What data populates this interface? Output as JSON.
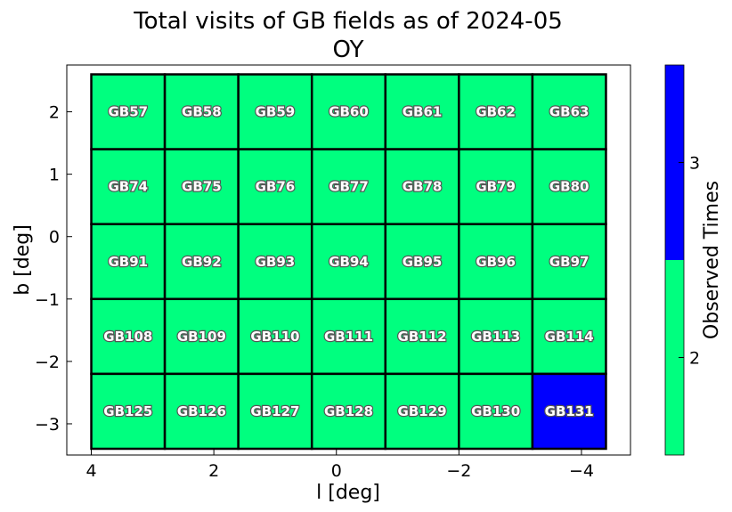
{
  "chart_data": {
    "type": "heatmap",
    "title": "Total visits of GB fields as of 2024-05",
    "subtitle": "OY",
    "xlabel": "l [deg]",
    "ylabel": "b [deg]",
    "xlim": [
      4.4,
      -4.8
    ],
    "ylim": [
      -3.5,
      2.75
    ],
    "x_axis_inverted": true,
    "xticks": [
      4,
      2,
      0,
      -2,
      -4
    ],
    "xtick_labels": [
      "4",
      "2",
      "0",
      "−2",
      "−4"
    ],
    "yticks": [
      2,
      1,
      0,
      -1,
      -2,
      -3
    ],
    "ytick_labels": [
      "2",
      "1",
      "0",
      "−1",
      "−2",
      "−3"
    ],
    "grid": false,
    "colorbar": {
      "label": "Observed Times",
      "range": [
        1.5,
        3.5
      ],
      "segments": [
        {
          "from": 1.5,
          "to": 2.5,
          "value": 2,
          "color": "#00ff7f"
        },
        {
          "from": 2.5,
          "to": 3.5,
          "value": 3,
          "color": "#0000ff"
        }
      ],
      "ticks": [
        2,
        3
      ],
      "tick_labels": [
        "2",
        "3"
      ]
    },
    "l_edges": [
      4.0,
      2.8,
      1.6,
      0.4,
      -0.8,
      -2.0,
      -3.2,
      -4.4
    ],
    "b_edges": [
      2.6,
      1.4,
      0.2,
      -1.0,
      -2.2,
      -3.4
    ],
    "fields": [
      [
        "GB57",
        "GB58",
        "GB59",
        "GB60",
        "GB61",
        "GB62",
        "GB63"
      ],
      [
        "GB74",
        "GB75",
        "GB76",
        "GB77",
        "GB78",
        "GB79",
        "GB80"
      ],
      [
        "GB91",
        "GB92",
        "GB93",
        "GB94",
        "GB95",
        "GB96",
        "GB97"
      ],
      [
        "GB108",
        "GB109",
        "GB110",
        "GB111",
        "GB112",
        "GB113",
        "GB114"
      ],
      [
        "GB125",
        "GB126",
        "GB127",
        "GB128",
        "GB129",
        "GB130",
        "GB131"
      ]
    ],
    "visits": [
      [
        2,
        2,
        2,
        2,
        2,
        2,
        2
      ],
      [
        2,
        2,
        2,
        2,
        2,
        2,
        2
      ],
      [
        2,
        2,
        2,
        2,
        2,
        2,
        2
      ],
      [
        2,
        2,
        2,
        2,
        2,
        2,
        2
      ],
      [
        2,
        2,
        2,
        2,
        2,
        2,
        3
      ]
    ]
  }
}
